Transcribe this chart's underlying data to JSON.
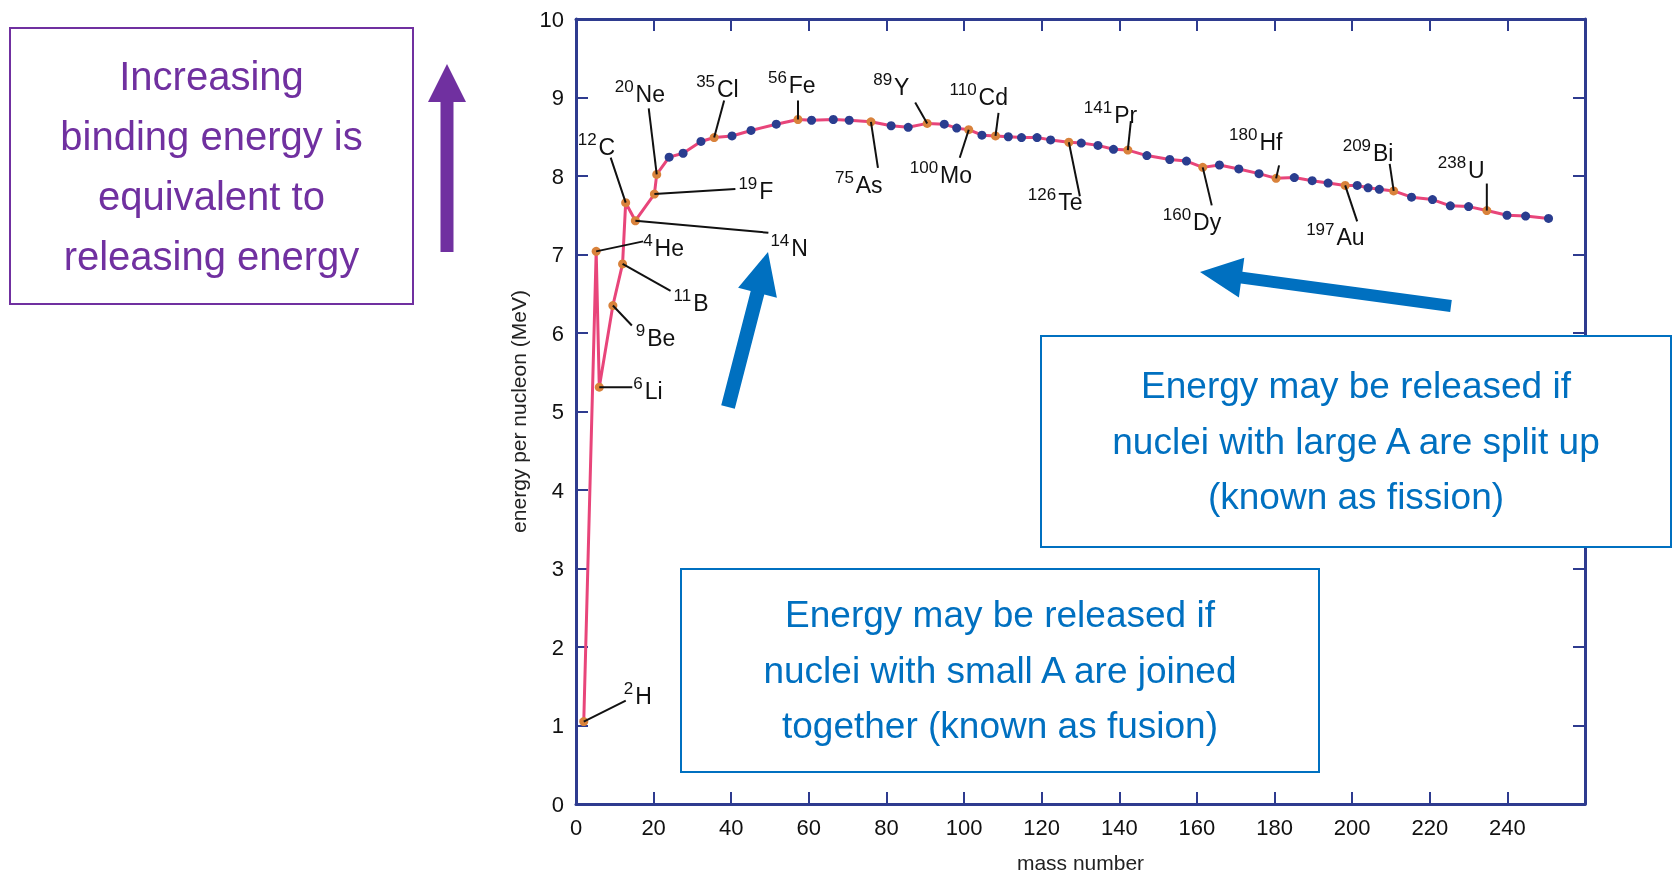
{
  "chart_data": {
    "type": "line",
    "xlabel": "mass number",
    "ylabel": "energy per nucleon (MeV)",
    "xlim": [
      0,
      260
    ],
    "xticks": [
      0,
      20,
      40,
      60,
      80,
      100,
      120,
      140,
      160,
      180,
      200,
      220,
      240
    ],
    "ylim": [
      0,
      10
    ],
    "yticks": [
      0,
      1,
      2,
      3,
      4,
      5,
      6,
      7,
      8,
      9,
      10
    ],
    "grid": false,
    "marker": "circle",
    "line_style": "solid",
    "series": [
      {
        "color": "#e8457a",
        "x": [
          2.0,
          5.2,
          6.0,
          9.5,
          12.0,
          12.8,
          15.3,
          20.2,
          20.8,
          24.0,
          27.6,
          32.2,
          35.6,
          40.2,
          45.1,
          51.6,
          57.2,
          60.7,
          66.3,
          70.4,
          76.0,
          81.2,
          85.6,
          90.5,
          94.9,
          98.1,
          101.2,
          104.6,
          108.1,
          111.4,
          114.8,
          118.8,
          122.3,
          127.0,
          130.2,
          134.5,
          138.5,
          142.2,
          147.1,
          153.0,
          157.3,
          161.5,
          165.8,
          170.8,
          176.0,
          180.4,
          185.1,
          189.7,
          193.8,
          198.2,
          201.3,
          204.1,
          207.0,
          210.7,
          215.3,
          220.7,
          225.3,
          230.0,
          234.7,
          239.9,
          244.7,
          250.6
        ],
        "values": [
          1.05,
          7.04,
          5.31,
          6.35,
          6.88,
          7.66,
          7.43,
          7.77,
          8.02,
          8.24,
          8.29,
          8.44,
          8.49,
          8.51,
          8.58,
          8.66,
          8.72,
          8.71,
          8.72,
          8.71,
          8.69,
          8.64,
          8.62,
          8.67,
          8.66,
          8.61,
          8.59,
          8.52,
          8.51,
          8.5,
          8.49,
          8.49,
          8.46,
          8.43,
          8.42,
          8.39,
          8.34,
          8.33,
          8.26,
          8.21,
          8.19,
          8.11,
          8.14,
          8.09,
          8.03,
          7.97,
          7.98,
          7.94,
          7.91,
          7.88,
          7.88,
          7.85,
          7.83,
          7.81,
          7.73,
          7.7,
          7.62,
          7.61,
          7.56,
          7.5,
          7.49,
          7.46
        ],
        "colors": [
          "#d9823b",
          "#d9823b",
          "#d9823b",
          "#d9823b",
          "#d9823b",
          "#d9823b",
          "#d9823b",
          "#d9823b",
          "#d9823b",
          "#2a3d8f",
          "#2a3d8f",
          "#2a3d8f",
          "#d9823b",
          "#2a3d8f",
          "#2a3d8f",
          "#2a3d8f",
          "#d9823b",
          "#2a3d8f",
          "#2a3d8f",
          "#2a3d8f",
          "#d9823b",
          "#2a3d8f",
          "#2a3d8f",
          "#d9823b",
          "#2a3d8f",
          "#2a3d8f",
          "#d9823b",
          "#2a3d8f",
          "#d9823b",
          "#2a3d8f",
          "#2a3d8f",
          "#2a3d8f",
          "#2a3d8f",
          "#d9823b",
          "#2a3d8f",
          "#2a3d8f",
          "#2a3d8f",
          "#d9823b",
          "#2a3d8f",
          "#2a3d8f",
          "#2a3d8f",
          "#d9823b",
          "#2a3d8f",
          "#2a3d8f",
          "#2a3d8f",
          "#d9823b",
          "#2a3d8f",
          "#2a3d8f",
          "#2a3d8f",
          "#d9823b",
          "#2a3d8f",
          "#2a3d8f",
          "#2a3d8f",
          "#d9823b",
          "#2a3d8f",
          "#2a3d8f",
          "#2a3d8f",
          "#2a3d8f",
          "#d9823b",
          "#2a3d8f",
          "#2a3d8f",
          "#2a3d8f"
        ]
      }
    ],
    "annotations": [
      {
        "text": "$^{2}$H",
        "x": 2.0,
        "y": 1.05
      },
      {
        "text": "$^{4}$He",
        "x": 5.2,
        "y": 7.04
      },
      {
        "text": "$^{6}$Li",
        "x": 6.0,
        "y": 5.31
      },
      {
        "text": "$^{9}$Be",
        "x": 9.5,
        "y": 6.35
      },
      {
        "text": "$^{11}$B",
        "x": 12.0,
        "y": 6.88
      },
      {
        "text": "$^{12}$C",
        "x": 12.8,
        "y": 7.66
      },
      {
        "text": "$^{14}$N",
        "x": 15.3,
        "y": 7.43
      },
      {
        "text": "$^{19}$F",
        "x": 20.2,
        "y": 7.77
      },
      {
        "text": "$^{20}$Ne",
        "x": 20.8,
        "y": 8.02
      },
      {
        "text": "$^{35}$Cl",
        "x": 35.6,
        "y": 8.49
      },
      {
        "text": "$^{56}$Fe",
        "x": 57.2,
        "y": 8.72
      },
      {
        "text": "$^{75}$As",
        "x": 76.0,
        "y": 8.69
      },
      {
        "text": "$^{89}$Y",
        "x": 90.5,
        "y": 8.67
      },
      {
        "text": "$^{100}$Mo",
        "x": 101.2,
        "y": 8.59
      },
      {
        "text": "$^{110}$Cd",
        "x": 108.1,
        "y": 8.51
      },
      {
        "text": "$^{126}$Te",
        "x": 127.0,
        "y": 8.43
      },
      {
        "text": "$^{141}$Pr",
        "x": 142.2,
        "y": 8.33
      },
      {
        "text": "$^{160}$Dy",
        "x": 161.5,
        "y": 8.11
      },
      {
        "text": "$^{180}$Hf",
        "x": 180.4,
        "y": 7.97
      },
      {
        "text": "$^{197}$Au",
        "x": 198.2,
        "y": 7.88
      },
      {
        "text": "$^{209}$Bi",
        "x": 210.7,
        "y": 7.81
      },
      {
        "text": "$^{238}$U",
        "x": 234.7,
        "y": 7.56
      },
      "Increasing binding energy is equivalent to releasing energy",
      "Energy may be released if nuclei with small A are joined together (known as fusion)",
      "Energy may be released if nuclei with large A are split up (known as fission)"
    ]
  }
}
